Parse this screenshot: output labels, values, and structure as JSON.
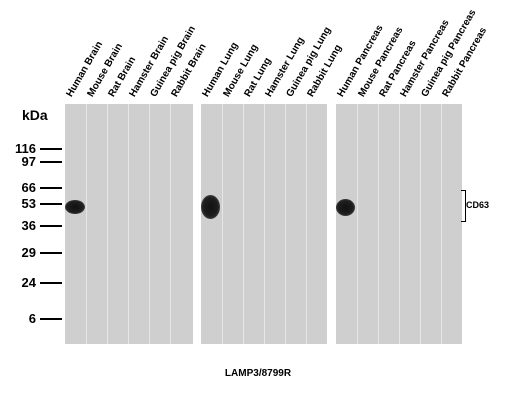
{
  "lanes": {
    "brain": [
      "Human Brain",
      "Mouse Brain",
      "Rat Brain",
      "Hamster Brain",
      "Guinea pig Brain",
      "Rabbit Brain"
    ],
    "lung": [
      "Human Lung",
      "Mouse Lung",
      "Rat Lung",
      "Hamster Lung",
      "Guinea pig Lung",
      "Rabbit Lung"
    ],
    "pancreas": [
      "Human Pancreas",
      "Mouse Pancreas",
      "Rat Pancreas",
      "Hamster Pancreas",
      "Guinea pig Pancreas",
      "Rabbit Pancreas"
    ]
  },
  "marker": {
    "unit": "kDa",
    "values": [
      "116",
      "97",
      "66",
      "53",
      "36",
      "29",
      "24",
      "6"
    ]
  },
  "band_label": "CD63",
  "antibody": "LAMP3/8799R"
}
